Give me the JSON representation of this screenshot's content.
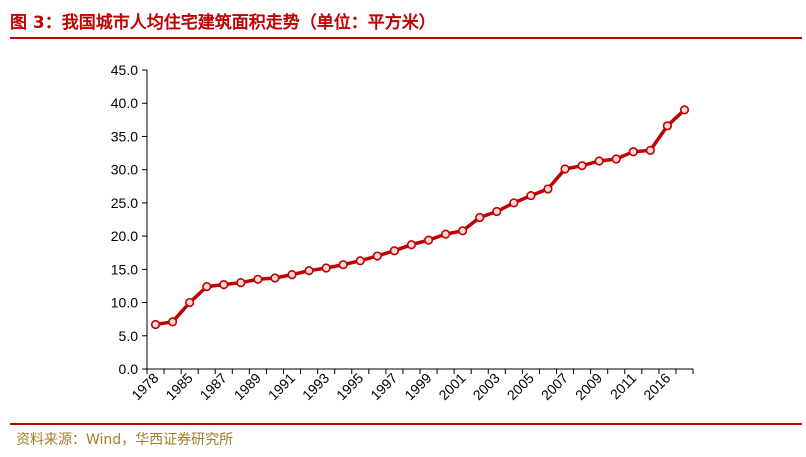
{
  "header": {
    "title": "图 3：我国城市人均住宅建筑面积走势（单位：平方米）"
  },
  "footer": {
    "source": "资料来源：Wind，华西证券研究所"
  },
  "colors": {
    "line": "#c00000",
    "marker_fill": "#ffd9d9",
    "accent": "#c00000",
    "source_text": "#a57c2a"
  },
  "chart_data": {
    "type": "line",
    "title": "",
    "xlabel": "",
    "ylabel": "",
    "ylim": [
      0,
      45
    ],
    "yticks": [
      "0.0",
      "5.0",
      "10.0",
      "15.0",
      "20.0",
      "25.0",
      "30.0",
      "35.0",
      "40.0",
      "45.0"
    ],
    "x_tick_labels": [
      "1978",
      "1985",
      "1987",
      "1989",
      "1991",
      "1993",
      "1995",
      "1997",
      "1999",
      "2001",
      "2003",
      "2005",
      "2007",
      "2009",
      "2011",
      "2016"
    ],
    "categories": [
      "1978",
      "1984",
      "1985",
      "1986",
      "1987",
      "1988",
      "1989",
      "1990",
      "1991",
      "1992",
      "1993",
      "1994",
      "1995",
      "1996",
      "1997",
      "1998",
      "1999",
      "2000",
      "2001",
      "2002",
      "2003",
      "2004",
      "2005",
      "2006",
      "2007",
      "2008",
      "2009",
      "2010",
      "2011",
      "2012",
      "2016",
      "2017"
    ],
    "series": [
      {
        "values": [
          6.7,
          7.1,
          10.0,
          12.4,
          12.7,
          13.0,
          13.5,
          13.7,
          14.2,
          14.8,
          15.2,
          15.7,
          16.3,
          17.0,
          17.8,
          18.7,
          19.4,
          20.3,
          20.8,
          22.8,
          23.7,
          25.0,
          26.1,
          27.1,
          30.1,
          30.6,
          31.3,
          31.6,
          32.7,
          32.9,
          36.6,
          39.0
        ]
      }
    ],
    "grid": false,
    "legend": "none"
  }
}
